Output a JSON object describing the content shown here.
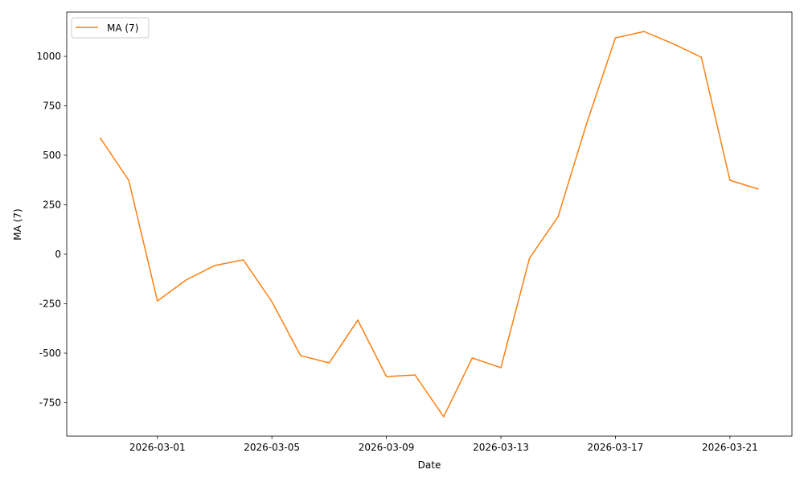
{
  "chart_data": {
    "type": "line",
    "title": "",
    "xlabel": "Date",
    "ylabel": "MA (7)",
    "legend": {
      "placement": "top-left",
      "entries": [
        "MA (7)"
      ]
    },
    "grid": false,
    "ylim": [
      -919,
      1224
    ],
    "xlim": [
      "2026-02-25T20:00",
      "2026-03-23T04:00"
    ],
    "yticks": [
      -750,
      -500,
      -250,
      0,
      250,
      500,
      750,
      1000
    ],
    "xticks": [
      "2026-03-01",
      "2026-03-05",
      "2026-03-09",
      "2026-03-13",
      "2026-03-17",
      "2026-03-21"
    ],
    "series": [
      {
        "name": "MA (7)",
        "color": "#ff7f0e",
        "x": [
          "2026-02-27",
          "2026-02-28",
          "2026-03-01",
          "2026-03-02",
          "2026-03-03",
          "2026-03-04",
          "2026-03-05",
          "2026-03-06",
          "2026-03-07",
          "2026-03-08",
          "2026-03-09",
          "2026-03-10",
          "2026-03-11",
          "2026-03-12",
          "2026-03-13",
          "2026-03-14",
          "2026-03-15",
          "2026-03-16",
          "2026-03-17",
          "2026-03-18",
          "2026-03-19",
          "2026-03-20",
          "2026-03-21",
          "2026-03-22"
        ],
        "values": [
          589,
          374,
          -236,
          -130,
          -57,
          -28,
          -240,
          -512,
          -549,
          -333,
          -618,
          -610,
          -821,
          -524,
          -573,
          -20,
          191,
          663,
          1093,
          1126,
          1065,
          996,
          374,
          329
        ]
      }
    ]
  }
}
